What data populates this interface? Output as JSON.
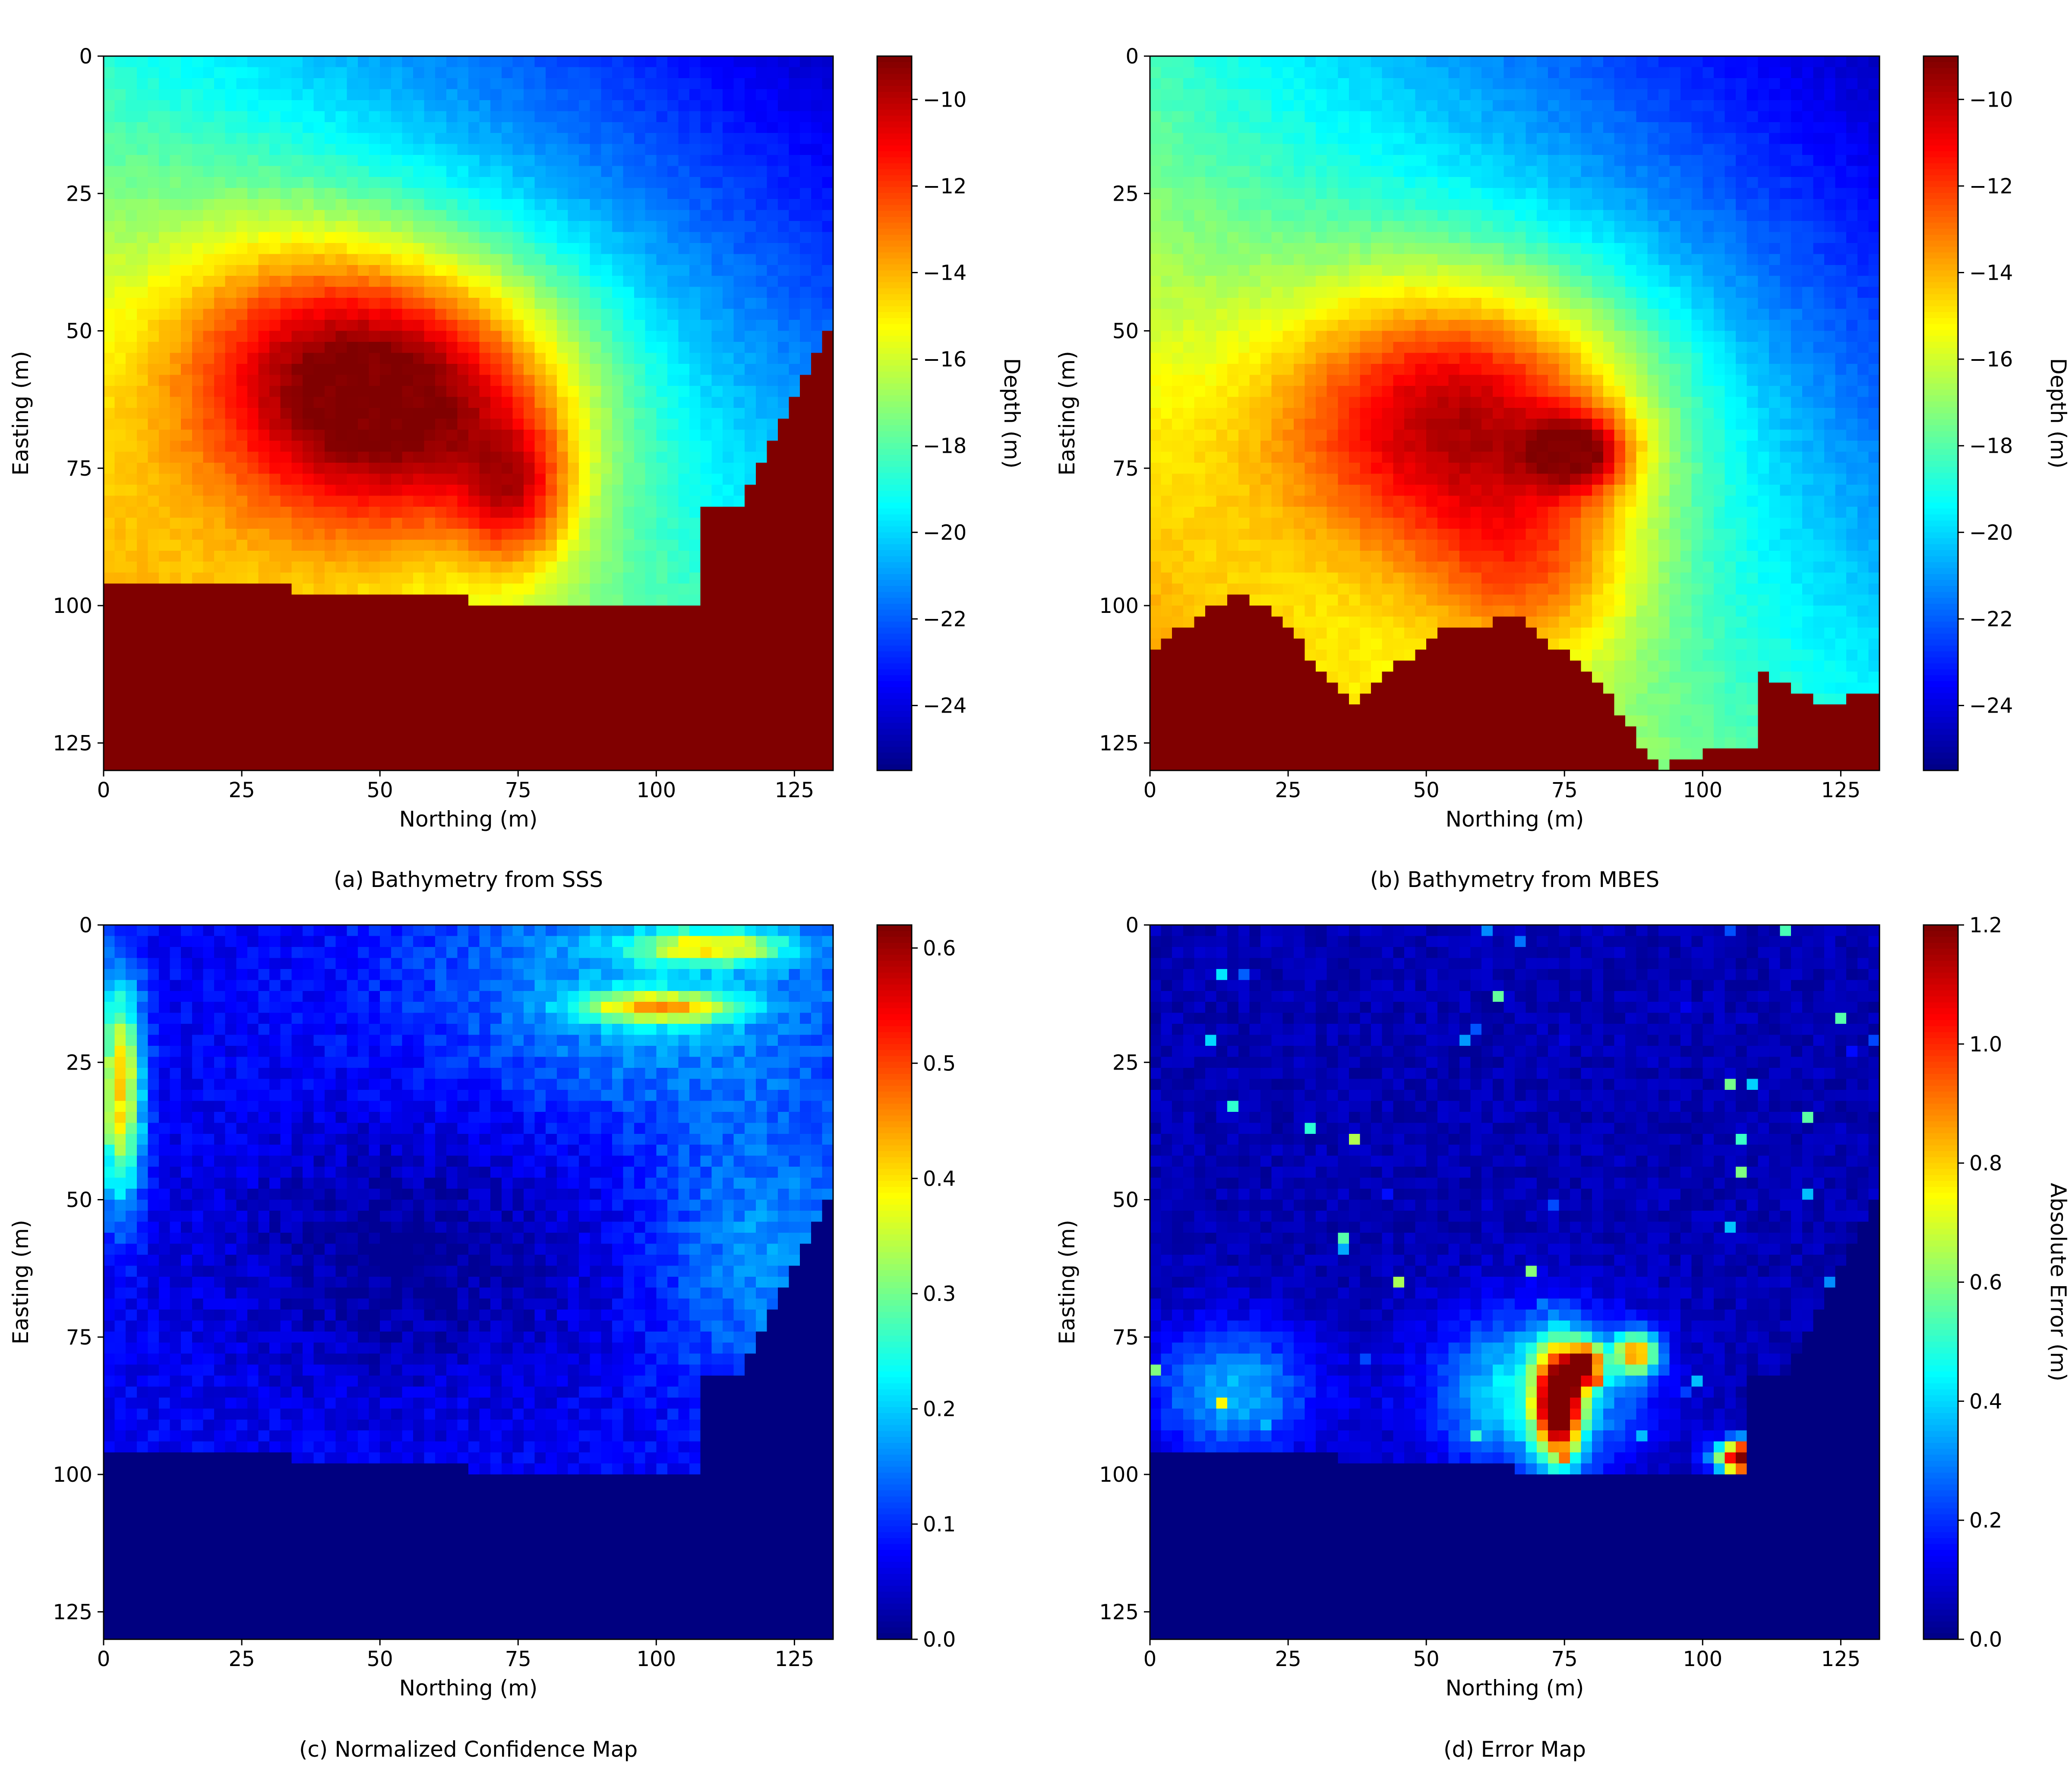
{
  "colors": {
    "background": "#ffffff",
    "terrain_fill": "#800000",
    "axis": "#000000"
  },
  "colormap": "jet",
  "chart_data": [
    {
      "type": "heatmap",
      "caption": "(a) Bathymetry from SSS",
      "xlabel": "Northing (m)",
      "ylabel": "Easting (m)",
      "xlim": [
        0,
        132
      ],
      "ylim": [
        130,
        0
      ],
      "y_inverted": true,
      "xticks": [
        "0",
        "25",
        "50",
        "75",
        "100",
        "125"
      ],
      "yticks": [
        "0",
        "25",
        "50",
        "75",
        "100",
        "125"
      ],
      "field": "sss_depth",
      "colorbar": {
        "label": "Depth (m)",
        "min": -25.5,
        "max": -9,
        "ticks": [
          "−10",
          "−12",
          "−14",
          "−16",
          "−18",
          "−20",
          "−22",
          "−24"
        ],
        "tick_values": [
          -10,
          -12,
          -14,
          -16,
          -18,
          -20,
          -22,
          -24
        ]
      },
      "no_data_boundary": [
        [
          0,
          95
        ],
        [
          25,
          96.5
        ],
        [
          50,
          98
        ],
        [
          75,
          99.5
        ],
        [
          92,
          100
        ],
        [
          108,
          100
        ],
        [
          108,
          83
        ],
        [
          115,
          82
        ],
        [
          122,
          68
        ],
        [
          128,
          56
        ],
        [
          132,
          47
        ]
      ],
      "high_region": {
        "center": [
          55,
          62
        ],
        "peak": [
          75,
          78
        ]
      }
    },
    {
      "type": "heatmap",
      "caption": "(b) Bathymetry from MBES",
      "xlabel": "Northing (m)",
      "ylabel": "Easting (m)",
      "xlim": [
        0,
        132
      ],
      "ylim": [
        130,
        0
      ],
      "y_inverted": true,
      "xticks": [
        "0",
        "25",
        "50",
        "75",
        "100",
        "125"
      ],
      "yticks": [
        "0",
        "25",
        "50",
        "75",
        "100",
        "125"
      ],
      "field": "mbes_depth",
      "colorbar": {
        "label": "Depth (m)",
        "min": -25.5,
        "max": -9,
        "ticks": [
          "−10",
          "−12",
          "−14",
          "−16",
          "−18",
          "−20",
          "−22",
          "−24"
        ],
        "tick_values": [
          -10,
          -12,
          -14,
          -16,
          -18,
          -20,
          -22,
          -24
        ]
      },
      "no_data_boundary": [
        [
          0,
          108
        ],
        [
          15,
          98
        ],
        [
          22,
          100
        ],
        [
          36,
          118
        ],
        [
          52,
          105
        ],
        [
          58,
          104
        ],
        [
          66,
          102
        ],
        [
          80,
          112
        ],
        [
          92,
          130
        ],
        [
          106,
          125
        ],
        [
          110,
          127
        ],
        [
          102,
          115
        ],
        [
          106,
          112
        ],
        [
          112,
          113
        ],
        [
          124,
          119
        ],
        [
          128,
          116
        ],
        [
          132,
          115
        ]
      ],
      "high_region": {
        "center": [
          60,
          65
        ],
        "peak": [
          78,
          72
        ]
      }
    },
    {
      "type": "heatmap",
      "caption": "(c) Normalized Confidence Map",
      "xlabel": "Northing (m)",
      "ylabel": "Easting (m)",
      "xlim": [
        0,
        132
      ],
      "ylim": [
        130,
        0
      ],
      "y_inverted": true,
      "xticks": [
        "0",
        "25",
        "50",
        "75",
        "100",
        "125"
      ],
      "yticks": [
        "0",
        "25",
        "50",
        "75",
        "100",
        "125"
      ],
      "field": "confidence",
      "colorbar": {
        "label": "",
        "min": 0,
        "max": 0.62,
        "ticks": [
          "0.0",
          "0.1",
          "0.2",
          "0.3",
          "0.4",
          "0.5",
          "0.6"
        ],
        "tick_values": [
          0,
          0.1,
          0.2,
          0.3,
          0.4,
          0.5,
          0.6
        ]
      },
      "no_data_boundary": [
        [
          0,
          95
        ],
        [
          25,
          96.5
        ],
        [
          50,
          98
        ],
        [
          75,
          99.5
        ],
        [
          92,
          100
        ],
        [
          108,
          100
        ],
        [
          108,
          83
        ],
        [
          115,
          82
        ],
        [
          122,
          68
        ],
        [
          128,
          56
        ],
        [
          132,
          47
        ]
      ]
    },
    {
      "type": "heatmap",
      "caption": "(d) Error Map",
      "xlabel": "Northing (m)",
      "ylabel": "Easting (m)",
      "xlim": [
        0,
        132
      ],
      "ylim": [
        130,
        0
      ],
      "y_inverted": true,
      "xticks": [
        "0",
        "25",
        "50",
        "75",
        "100",
        "125"
      ],
      "yticks": [
        "0",
        "25",
        "50",
        "75",
        "100",
        "125"
      ],
      "field": "error",
      "colorbar": {
        "label": "Absolute Error (m)",
        "min": 0,
        "max": 1.2,
        "ticks": [
          "0.0",
          "0.2",
          "0.4",
          "0.6",
          "0.8",
          "1.0",
          "1.2"
        ],
        "tick_values": [
          0,
          0.2,
          0.4,
          0.6,
          0.8,
          1.0,
          1.2
        ]
      },
      "no_data_boundary": [
        [
          0,
          95
        ],
        [
          25,
          96.5
        ],
        [
          50,
          98
        ],
        [
          75,
          99.5
        ],
        [
          92,
          100
        ],
        [
          108,
          100
        ],
        [
          108,
          83
        ],
        [
          115,
          82
        ],
        [
          122,
          68
        ],
        [
          128,
          56
        ],
        [
          132,
          47
        ]
      ],
      "hotspots": [
        [
          74,
          87
        ],
        [
          79,
          80
        ],
        [
          88,
          78
        ],
        [
          108,
          97
        ]
      ]
    }
  ]
}
